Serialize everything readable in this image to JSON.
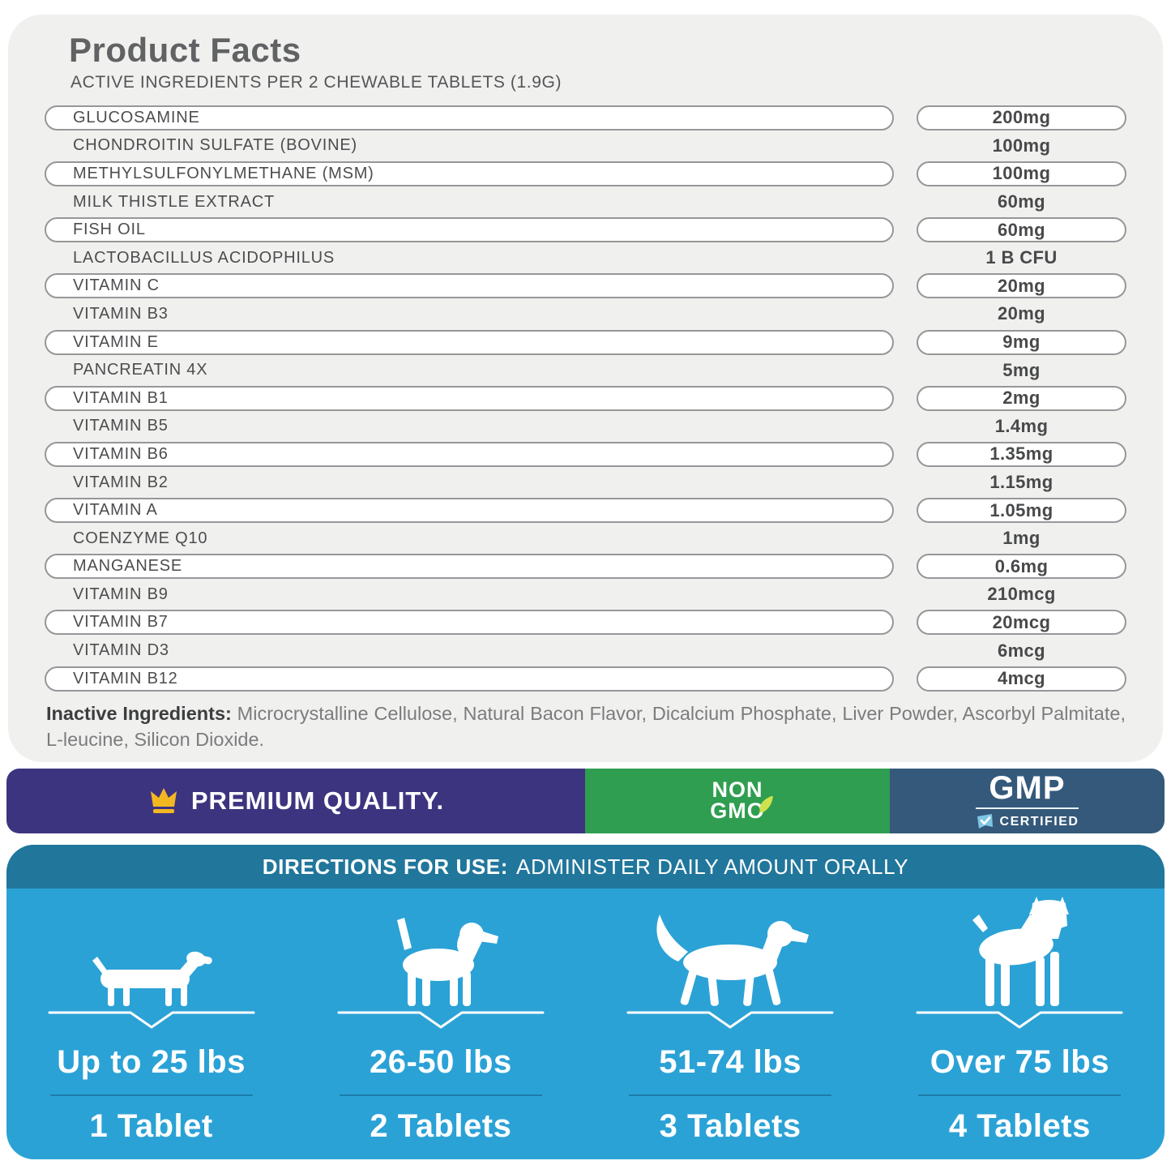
{
  "header": {
    "title": "Product Facts",
    "subtitle": "ACTIVE INGREDIENTS PER 2 CHEWABLE TABLETS (1.9G)"
  },
  "ingredients": {
    "rows": [
      {
        "name": "GLUCOSAMINE",
        "amount": "200mg"
      },
      {
        "name": "CHONDROITIN SULFATE (BOVINE)",
        "amount": "100mg"
      },
      {
        "name": "METHYLSULFONYLMETHANE (MSM)",
        "amount": "100mg"
      },
      {
        "name": "MILK THISTLE EXTRACT",
        "amount": "60mg"
      },
      {
        "name": "FISH OIL",
        "amount": "60mg"
      },
      {
        "name": "LACTOBACILLUS ACIDOPHILUS",
        "amount": "1 B CFU"
      },
      {
        "name": "VITAMIN C",
        "amount": "20mg"
      },
      {
        "name": "VITAMIN B3",
        "amount": "20mg"
      },
      {
        "name": "VITAMIN E",
        "amount": "9mg"
      },
      {
        "name": "PANCREATIN 4X",
        "amount": "5mg"
      },
      {
        "name": "VITAMIN B1",
        "amount": "2mg"
      },
      {
        "name": "VITAMIN B5",
        "amount": "1.4mg"
      },
      {
        "name": "VITAMIN B6",
        "amount": "1.35mg"
      },
      {
        "name": "VITAMIN B2",
        "amount": "1.15mg"
      },
      {
        "name": "VITAMIN A",
        "amount": "1.05mg"
      },
      {
        "name": "COENZYME Q10",
        "amount": "1mg"
      },
      {
        "name": "MANGANESE",
        "amount": "0.6mg"
      },
      {
        "name": "VITAMIN B9",
        "amount": "210mcg"
      },
      {
        "name": "VITAMIN B7",
        "amount": "20mcg"
      },
      {
        "name": "VITAMIN D3",
        "amount": "6mcg"
      },
      {
        "name": "VITAMIN B12",
        "amount": "4mcg"
      }
    ]
  },
  "inactive": {
    "label": "Inactive Ingredients:",
    "text": " Microcrystalline Cellulose, Natural Bacon Flavor, Dicalcium Phosphate, Liver Powder, Ascorbyl Palmitate, L-leucine, Silicon Dioxide."
  },
  "badges": {
    "premium": {
      "label": "PREMIUM QUALITY.",
      "icon": "crown-icon",
      "bg": "#3d3480",
      "crown_color": "#f3b722"
    },
    "non_gmo": {
      "line1": "NON",
      "line2": "GMO",
      "icon": "leaf-icon",
      "bg": "#2f9e50",
      "leaf_color": "#cfe24e"
    },
    "gmp": {
      "title": "GMP",
      "subtitle": "CERTIFIED",
      "icon": "check-ribbon-icon",
      "bg": "#35597b",
      "check_color": "#7fc6e4"
    }
  },
  "directions": {
    "heading_bold": "DIRECTIONS FOR USE:",
    "heading_rest": "ADMINISTER DAILY AMOUNT ORALLY",
    "bar_bg": "#21769b",
    "panel_bg": "#2ba2d6",
    "columns": [
      {
        "dog": "dachshund-dog",
        "weight": "Up to 25 lbs",
        "tablets": "1 Tablet"
      },
      {
        "dog": "beagle-dog",
        "weight": "26-50 lbs",
        "tablets": "2 Tablets"
      },
      {
        "dog": "retriever-dog",
        "weight": "51-74 lbs",
        "tablets": "3 Tablets"
      },
      {
        "dog": "boxer-dog",
        "weight": "Over 75 lbs",
        "tablets": "4 Tablets"
      }
    ]
  }
}
